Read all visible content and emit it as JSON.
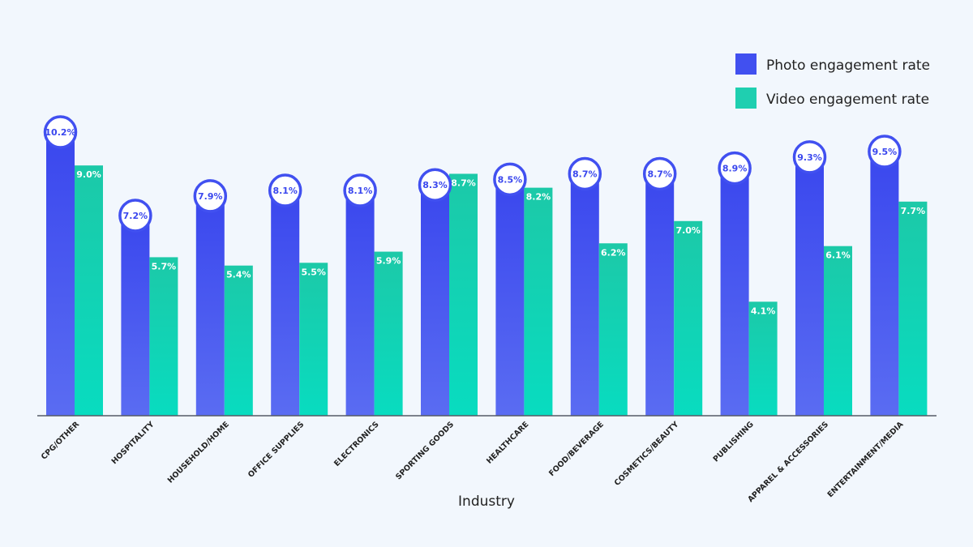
{
  "chart_data": {
    "type": "bar",
    "xlabel": "Industry",
    "ylabel": "",
    "ylim": [
      0,
      10.2
    ],
    "grid": false,
    "legend_position": "top-right",
    "categories": [
      "CPG/OTHER",
      "HOSPITALITY",
      "HOUSEHOLD/HOME",
      "OFFICE SUPPLIES",
      "ELECTRONICS",
      "SPORTING GOODS",
      "HEALTHCARE",
      "FOOD/BEVERAGE",
      "COSMETICS/BEAUTY",
      "PUBLISHING",
      "APPAREL & ACCESSORIES",
      "ENTERTAINMENT/MEDIA"
    ],
    "series": [
      {
        "name": "Photo engagement rate",
        "color": "#4150f0",
        "values": [
          10.2,
          7.2,
          7.9,
          8.1,
          8.1,
          8.3,
          8.5,
          8.7,
          8.7,
          8.9,
          9.3,
          9.5
        ],
        "labels": [
          "10.2%",
          "7.2%",
          "7.9%",
          "8.1%",
          "8.1%",
          "8.3%",
          "8.5%",
          "8.7%",
          "8.7%",
          "8.9%",
          "9.3%",
          "9.5%"
        ]
      },
      {
        "name": "Video engagement rate",
        "color": "#1fcfb0",
        "values": [
          9.0,
          5.7,
          5.4,
          5.5,
          5.9,
          8.7,
          8.2,
          6.2,
          7.0,
          4.1,
          6.1,
          7.7
        ],
        "labels": [
          "9.0%",
          "5.7%",
          "5.4%",
          "5.5%",
          "5.9%",
          "8.7%",
          "8.2%",
          "6.2%",
          "7.0%",
          "4.1%",
          "6.1%",
          "7.7%"
        ]
      }
    ]
  }
}
